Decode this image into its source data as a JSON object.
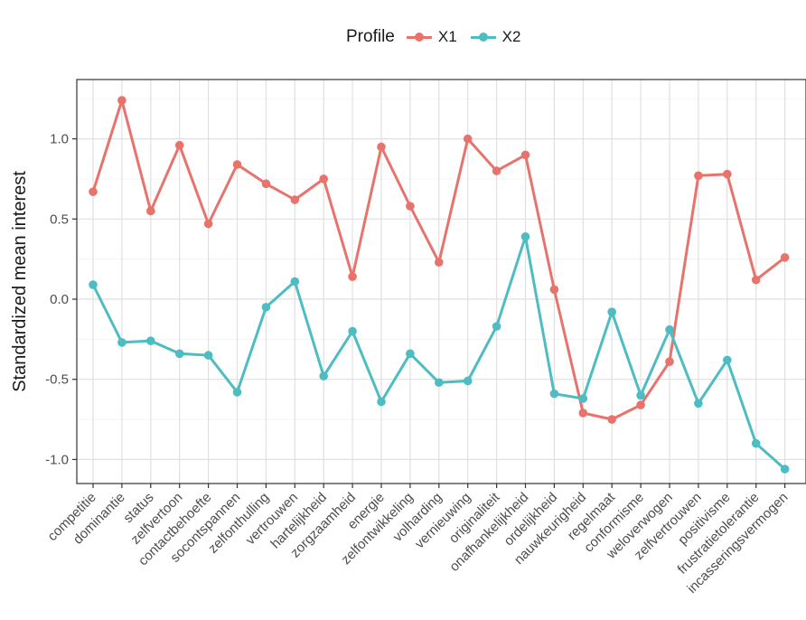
{
  "chart_data": {
    "type": "line",
    "xlabel": "",
    "ylabel": "Standardized mean interest",
    "ylim": [
      -1.15,
      1.37
    ],
    "yticks": [
      -1.0,
      -0.5,
      0.0,
      0.5,
      1.0
    ],
    "ytick_labels": [
      "-1.0",
      "-0.5",
      "0.0",
      "0.5",
      "1.0"
    ],
    "grid": true,
    "legend": {
      "title": "Profile",
      "position": "top"
    },
    "categories": [
      "competitie",
      "dominantie",
      "status",
      "zelfvertoon",
      "contactbehoefte",
      "socontspannen",
      "zelfonthulling",
      "vertrouwen",
      "hartelijkheid",
      "zorgzaamheid",
      "energie",
      "zelfontwikkeling",
      "volharding",
      "vernieuwing",
      "originaliteit",
      "onafhankelijkheid",
      "ordelijkheid",
      "nauwkeurigheid",
      "regelmaat",
      "conformisme",
      "weloverwogen",
      "zelfvertrouwen",
      "positivisme",
      "frustratietolerantie",
      "incasseringsvermogen"
    ],
    "series": [
      {
        "name": "X1",
        "color": "#e8736c",
        "values": [
          0.67,
          1.24,
          0.55,
          0.96,
          0.47,
          0.84,
          0.72,
          0.62,
          0.75,
          0.14,
          0.95,
          0.58,
          0.23,
          1.0,
          0.8,
          0.9,
          0.06,
          -0.71,
          -0.75,
          -0.66,
          -0.39,
          0.77,
          0.78,
          0.12,
          0.26
        ]
      },
      {
        "name": "X2",
        "color": "#4dbdc2",
        "values": [
          0.09,
          -0.27,
          -0.26,
          -0.34,
          -0.35,
          -0.58,
          -0.05,
          0.11,
          -0.48,
          -0.2,
          -0.64,
          -0.34,
          -0.52,
          -0.51,
          -0.17,
          0.39,
          -0.59,
          -0.62,
          -0.08,
          -0.6,
          -0.19,
          -0.65,
          -0.38,
          -0.9,
          -1.06
        ]
      }
    ]
  }
}
